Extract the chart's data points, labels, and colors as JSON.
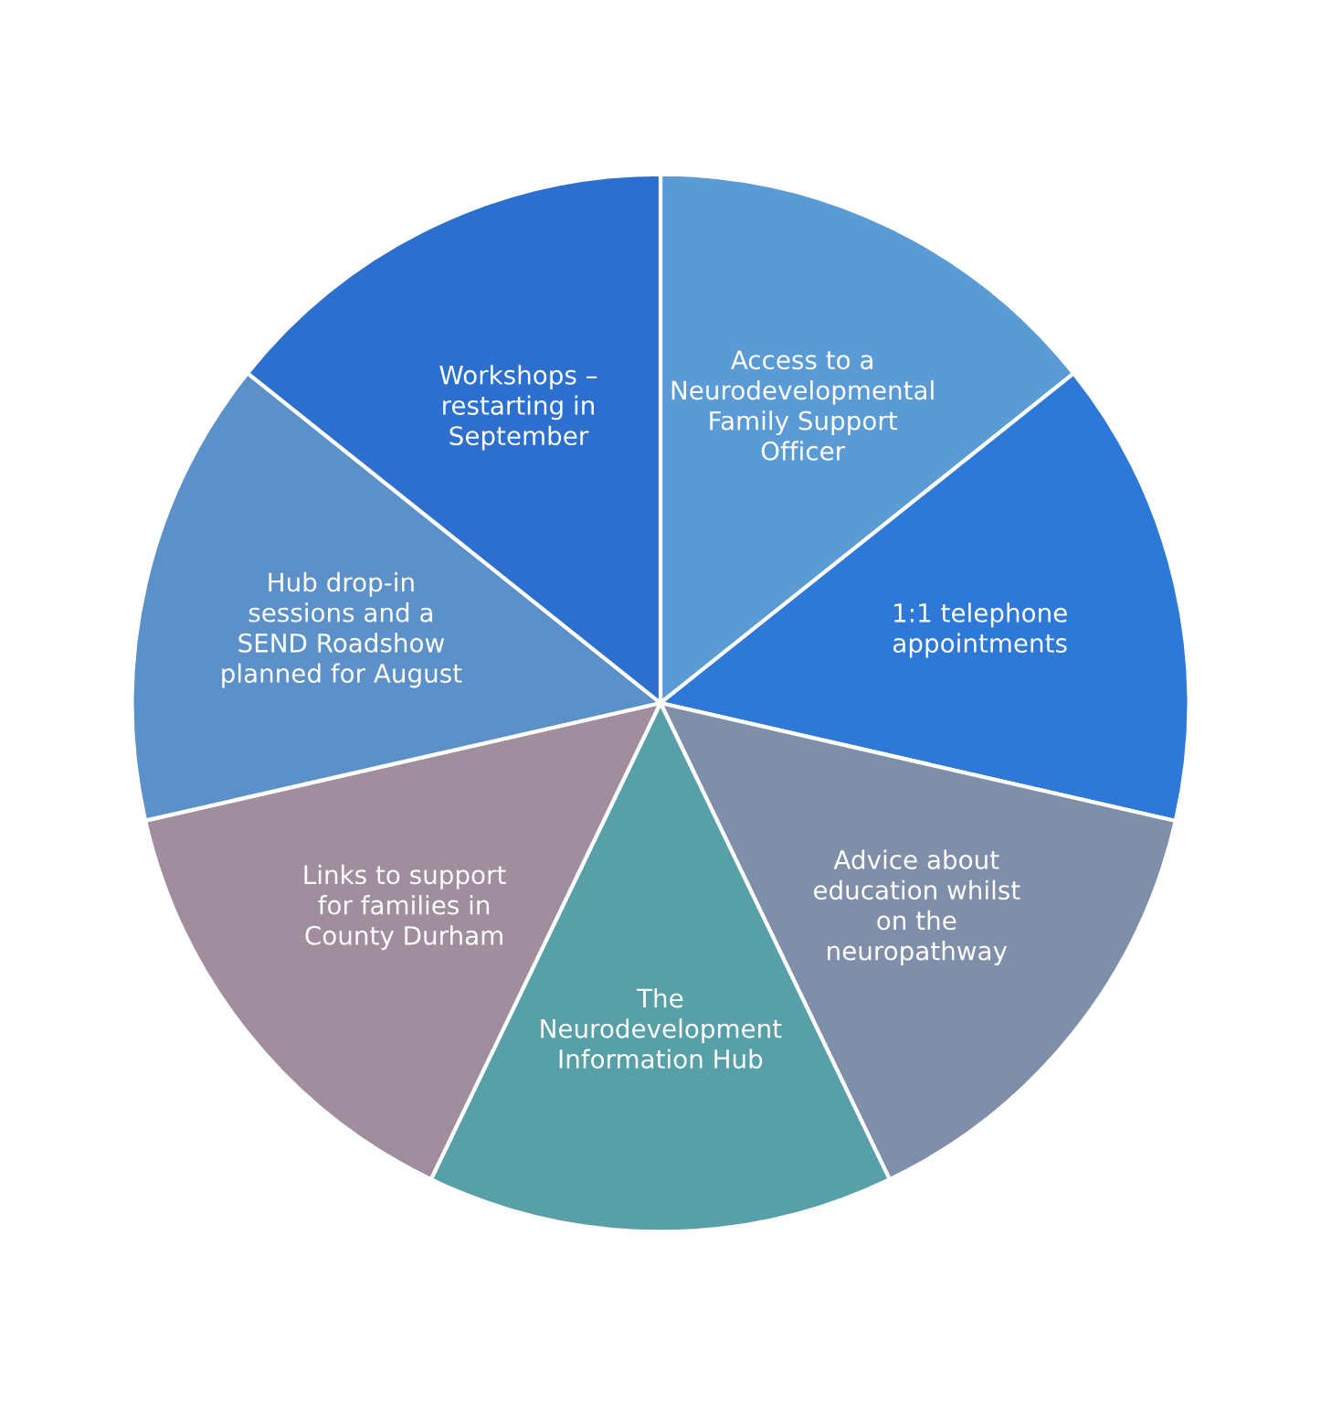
{
  "chart_data": {
    "type": "pie",
    "categories": [
      "Access to a Neurodevelopmental Family Support Officer",
      "1:1 telephone appointments",
      "Advice about education whilst on the neuropathway",
      "The Neurodevelopment Information Hub",
      "Links to support for families in County Durham",
      "Hub drop-in sessions and a SEND Roadshow planned for August",
      "Workshops – restarting in September"
    ],
    "values": [
      14.29,
      14.29,
      14.28,
      14.29,
      14.28,
      14.29,
      14.28
    ],
    "colors": [
      "#5b9bd5",
      "#2e78d8",
      "#7f8faa",
      "#58a0a8",
      "#a08d9e",
      "#5b90c8",
      "#2c6fce"
    ],
    "legend": false
  }
}
